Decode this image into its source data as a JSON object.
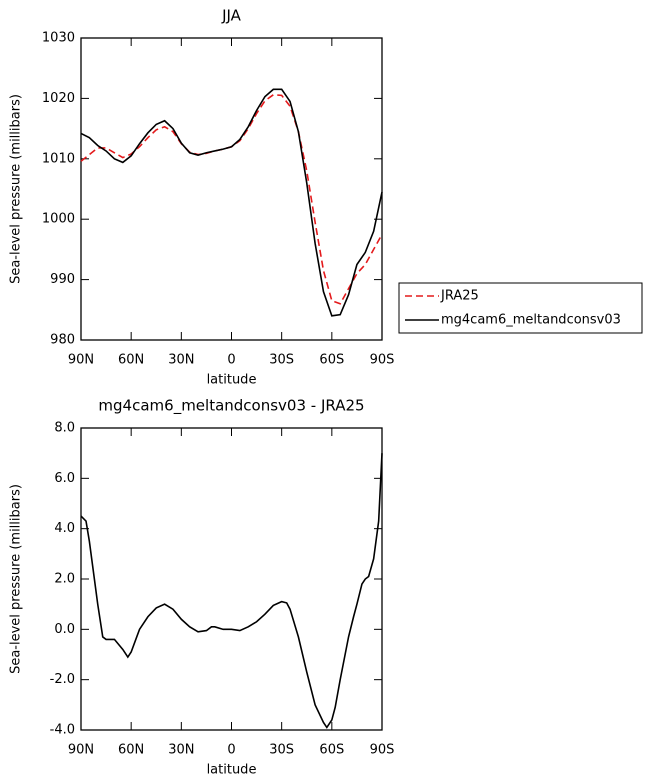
{
  "chart_data": [
    {
      "type": "line",
      "title": "JJA",
      "x_label": "latitude",
      "y_label": "Sea-level pressure (millibars)",
      "x": [
        90,
        85,
        80,
        75,
        70,
        65,
        60,
        55,
        50,
        45,
        40,
        35,
        30,
        25,
        20,
        15,
        10,
        5,
        0,
        -5,
        -10,
        -15,
        -20,
        -25,
        -30,
        -35,
        -40,
        -45,
        -50,
        -55,
        -60,
        -65,
        -70,
        -75,
        -80,
        -85,
        -90
      ],
      "series": [
        {
          "name": "JRA25",
          "color": "#e41a1c",
          "line_style": "dashed",
          "values": [
            1009.6,
            1010.7,
            1011.8,
            1011.8,
            1011.0,
            1010.2,
            1010.8,
            1012.0,
            1013.5,
            1014.8,
            1015.3,
            1014.5,
            1012.5,
            1011.1,
            1010.7,
            1010.9,
            1011.3,
            1011.6,
            1012.0,
            1013.0,
            1015.0,
            1017.5,
            1019.6,
            1020.6,
            1020.5,
            1018.7,
            1014.5,
            1008.0,
            999.5,
            991.5,
            986.5,
            986.0,
            988.5,
            991.0,
            992.5,
            995.0,
            997.5
          ]
        },
        {
          "name": "mg4cam6_meltandconsv03",
          "color": "#000000",
          "line_style": "solid",
          "values": [
            1014.2,
            1013.5,
            1012.2,
            1011.3,
            1010.0,
            1009.4,
            1010.5,
            1012.5,
            1014.3,
            1015.7,
            1016.3,
            1015.0,
            1012.6,
            1011.0,
            1010.6,
            1011.0,
            1011.3,
            1011.6,
            1012.0,
            1013.2,
            1015.3,
            1018.0,
            1020.3,
            1021.5,
            1021.5,
            1019.5,
            1014.5,
            1006.0,
            996.0,
            988.0,
            984.0,
            984.2,
            987.5,
            992.5,
            994.5,
            998.0,
            1004.5
          ]
        }
      ],
      "xlim": [
        90,
        -90
      ],
      "xticks": [
        {
          "value": 90,
          "label": "90N"
        },
        {
          "value": 60,
          "label": "60N"
        },
        {
          "value": 30,
          "label": "30N"
        },
        0,
        {
          "value": -30,
          "label": "30S"
        },
        {
          "value": -60,
          "label": "60S"
        },
        {
          "value": -90,
          "label": "90S"
        }
      ],
      "ylim": [
        980,
        1030
      ],
      "yticks": [
        980,
        990,
        1000,
        1010,
        1020,
        1030
      ],
      "legend": "right"
    },
    {
      "type": "line",
      "title": "mg4cam6_meltandconsv03 - JRA25",
      "x_label": "latitude",
      "y_label": "Sea-level pressure (millibars)",
      "x": [
        90,
        87,
        85,
        82,
        80,
        77,
        75,
        70,
        65,
        62,
        60,
        55,
        50,
        45,
        40,
        35,
        30,
        25,
        20,
        15,
        12,
        10,
        5,
        0,
        -5,
        -10,
        -15,
        -20,
        -25,
        -30,
        -33,
        -35,
        -40,
        -45,
        -50,
        -55,
        -57,
        -60,
        -62,
        -65,
        -70,
        -73,
        -75,
        -78,
        -80,
        -82,
        -85,
        -88,
        -90
      ],
      "series": [
        {
          "color": "#000000",
          "line_style": "solid",
          "values": [
            4.5,
            4.3,
            3.5,
            2.0,
            1.0,
            -0.3,
            -0.4,
            -0.4,
            -0.8,
            -1.1,
            -0.9,
            0.0,
            0.5,
            0.85,
            1.0,
            0.8,
            0.4,
            0.1,
            -0.1,
            -0.05,
            0.1,
            0.1,
            0.0,
            0.0,
            -0.05,
            0.1,
            0.3,
            0.6,
            0.95,
            1.1,
            1.05,
            0.8,
            -0.3,
            -1.7,
            -3.0,
            -3.7,
            -3.9,
            -3.6,
            -3.1,
            -2.0,
            -0.3,
            0.5,
            1.0,
            1.8,
            2.0,
            2.1,
            2.8,
            4.3,
            7.0
          ]
        }
      ],
      "xlim": [
        90,
        -90
      ],
      "xticks": [
        {
          "value": 90,
          "label": "90N"
        },
        {
          "value": 60,
          "label": "60N"
        },
        {
          "value": 30,
          "label": "30N"
        },
        0,
        {
          "value": -30,
          "label": "30S"
        },
        {
          "value": -60,
          "label": "60S"
        },
        {
          "value": -90,
          "label": "90S"
        }
      ],
      "ylim": [
        -4,
        8
      ],
      "yticks": [
        {
          "value": -4,
          "label": "-4.0"
        },
        {
          "value": -2,
          "label": "-2.0"
        },
        {
          "value": 0,
          "label": "0.0"
        },
        {
          "value": 2,
          "label": "2.0"
        },
        {
          "value": 4,
          "label": "4.0"
        },
        {
          "value": 6,
          "label": "6.0"
        },
        {
          "value": 8,
          "label": "8.0"
        }
      ]
    }
  ]
}
